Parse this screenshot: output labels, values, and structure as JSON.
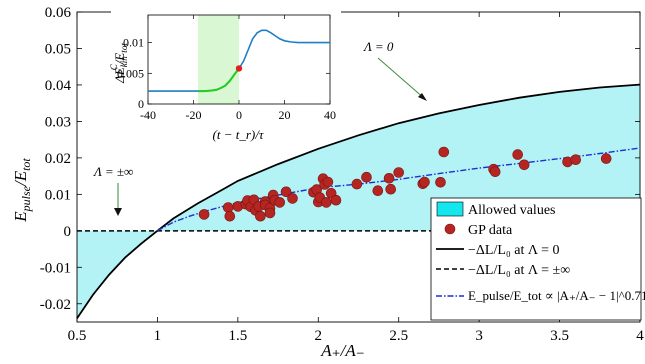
{
  "chart_data": [
    {
      "type": "scatter",
      "title": "",
      "xlabel": "A₊/A₋",
      "ylabel_main": "E",
      "ylabel_sub": "pulse",
      "ylabel_sep": "/E",
      "ylabel_sub2": "tot",
      "xlim": [
        0.5,
        4
      ],
      "ylim": [
        -0.025,
        0.06
      ],
      "xticks": [
        0.5,
        1,
        1.5,
        2,
        2.5,
        3,
        3.5,
        4
      ],
      "xtick_labels": [
        "0.5",
        "1",
        "1.5",
        "2",
        "2.5",
        "3",
        "3.5",
        "4"
      ],
      "yticks": [
        -0.02,
        -0.01,
        0,
        0.01,
        0.02,
        0.03,
        0.04,
        0.05,
        0.06
      ],
      "ytick_labels": [
        "-0.02",
        "-0.01",
        "0",
        "0.01",
        "0.02",
        "0.03",
        "0.04",
        "0.05",
        "0.06"
      ],
      "grid": false,
      "legend_placement": "bottom-right",
      "legend": [
        {
          "key": "allowed",
          "text": "Allowed values"
        },
        {
          "key": "gp",
          "text": "GP data"
        },
        {
          "key": "solid",
          "text": "−ΔL/L₀ at Λ = 0"
        },
        {
          "key": "dashed",
          "text": "−ΔL/L₀ at Λ = ±∞"
        },
        {
          "key": "fit",
          "text": "E_pulse/E_tot ∝ |A₊/A₋ − 1|^0.71"
        }
      ],
      "annotations": [
        {
          "text": "Λ = 0",
          "x": 3.03,
          "y": 0.0525
        },
        {
          "text": "Λ = ±∞",
          "x": 0.62,
          "y": 0.0135
        }
      ],
      "colors": {
        "fill": "#b3f2f5",
        "fill_legend": "#14e6ee",
        "gp": "#b52623",
        "gp_edge": "#7a1311",
        "boundary": "#000000",
        "fit": "#1f2fd2"
      },
      "series": [
        {
          "name": "−ΔL/L₀ at Λ = 0",
          "style": "solid",
          "points": [
            [
              0.5,
              -0.024
            ],
            [
              0.6,
              -0.0175
            ],
            [
              0.7,
              -0.012
            ],
            [
              0.8,
              -0.0073
            ],
            [
              0.9,
              -0.0035
            ],
            [
              1.0,
              0
            ],
            [
              1.1,
              0.0034
            ],
            [
              1.25,
              0.0075
            ],
            [
              1.4,
              0.0112
            ],
            [
              1.5,
              0.0137
            ],
            [
              1.75,
              0.0183
            ],
            [
              2.0,
              0.0225
            ],
            [
              2.25,
              0.0262
            ],
            [
              2.5,
              0.0295
            ],
            [
              2.75,
              0.0322
            ],
            [
              3.0,
              0.0345
            ],
            [
              3.25,
              0.0365
            ],
            [
              3.5,
              0.0381
            ],
            [
              3.75,
              0.0393
            ],
            [
              4.0,
              0.0401
            ]
          ]
        },
        {
          "name": "−ΔL/L₀ at Λ = ±∞",
          "style": "dashed",
          "points": [
            [
              0.5,
              0
            ],
            [
              4.0,
              0
            ]
          ]
        },
        {
          "name": "E_pulse/E_tot ∝ |A₊/A₋ − 1|^0.71",
          "style": "dashdot",
          "points": [
            [
              1.0,
              0
            ],
            [
              1.05,
              0.0012
            ],
            [
              1.1,
              0.0024
            ],
            [
              1.2,
              0.004
            ],
            [
              1.3,
              0.0054
            ],
            [
              1.5,
              0.0078
            ],
            [
              1.75,
              0.0098
            ],
            [
              2.0,
              0.0118
            ],
            [
              2.25,
              0.0128
            ],
            [
              2.5,
              0.0141
            ],
            [
              2.75,
              0.0157
            ],
            [
              3.0,
              0.0172
            ],
            [
              3.25,
              0.0185
            ],
            [
              3.5,
              0.0198
            ],
            [
              3.75,
              0.0212
            ],
            [
              4.0,
              0.0227
            ]
          ]
        },
        {
          "name": "GP data",
          "style": "markers",
          "points": [
            [
              1.29,
              0.0045
            ],
            [
              1.44,
              0.0064
            ],
            [
              1.45,
              0.004
            ],
            [
              1.5,
              0.0067
            ],
            [
              1.55,
              0.0073
            ],
            [
              1.56,
              0.0083
            ],
            [
              1.58,
              0.0066
            ],
            [
              1.6,
              0.0085
            ],
            [
              1.61,
              0.0056
            ],
            [
              1.63,
              0.0067
            ],
            [
              1.64,
              0.004
            ],
            [
              1.67,
              0.008
            ],
            [
              1.67,
              0.0071
            ],
            [
              1.7,
              0.0062
            ],
            [
              1.7,
              0.0049
            ],
            [
              1.72,
              0.0098
            ],
            [
              1.73,
              0.0084
            ],
            [
              1.76,
              0.0078
            ],
            [
              1.8,
              0.0107
            ],
            [
              1.84,
              0.0089
            ],
            [
              1.97,
              0.0106
            ],
            [
              1.99,
              0.0113
            ],
            [
              2.0,
              0.0079
            ],
            [
              2.01,
              0.0091
            ],
            [
              2.03,
              0.0143
            ],
            [
              2.04,
              0.0127
            ],
            [
              2.05,
              0.0078
            ],
            [
              2.06,
              0.0134
            ],
            [
              2.08,
              0.0103
            ],
            [
              2.11,
              0.0084
            ],
            [
              2.24,
              0.0128
            ],
            [
              2.3,
              0.0147
            ],
            [
              2.37,
              0.011
            ],
            [
              2.44,
              0.0144
            ],
            [
              2.45,
              0.0114
            ],
            [
              2.5,
              0.016
            ],
            [
              2.65,
              0.0129
            ],
            [
              2.66,
              0.0134
            ],
            [
              2.76,
              0.0133
            ],
            [
              2.78,
              0.0216
            ],
            [
              3.09,
              0.0169
            ],
            [
              3.1,
              0.0162
            ],
            [
              3.24,
              0.0209
            ],
            [
              3.28,
              0.0181
            ],
            [
              3.55,
              0.0189
            ],
            [
              3.6,
              0.0195
            ],
            [
              3.79,
              0.0198
            ]
          ]
        }
      ]
    },
    {
      "type": "line",
      "title": "",
      "xlabel": "(t − t_r)/τ",
      "ylabel_pre": "ΔE",
      "ylabel_sup": "C",
      "ylabel_sub": "kin",
      "ylabel_post": "/E",
      "ylabel_sub2": "tot",
      "xlim": [
        -40,
        40
      ],
      "ylim": [
        0,
        0.0145
      ],
      "xticks": [
        -40,
        -20,
        0,
        20,
        40
      ],
      "xtick_labels": [
        "-40",
        "-20",
        "0",
        "20",
        "40"
      ],
      "yticks": [
        0,
        0.005,
        0.01
      ],
      "ytick_labels": [
        "0",
        "0.005",
        "0.01"
      ],
      "grid": false,
      "shaded_region": {
        "x": [
          -18,
          0
        ],
        "color": "#d8f7d2"
      },
      "colors": {
        "line": "#1f7fc4",
        "highlight": "#22cc22",
        "marker": "#e01f1f"
      },
      "marker_point": [
        0,
        0.0058
      ],
      "series": [
        {
          "name": "",
          "points": [
            [
              -40,
              0.0021
            ],
            [
              -36,
              0.0021
            ],
            [
              -32,
              0.0021
            ],
            [
              -28,
              0.0021
            ],
            [
              -24,
              0.0021
            ],
            [
              -20,
              0.0021
            ],
            [
              -18,
              0.0021
            ],
            [
              -15,
              0.0021
            ],
            [
              -12,
              0.0022
            ],
            [
              -10,
              0.0023
            ],
            [
              -8,
              0.0026
            ],
            [
              -6,
              0.003
            ],
            [
              -4,
              0.0038
            ],
            [
              -2,
              0.0048
            ],
            [
              0,
              0.0058
            ],
            [
              2,
              0.007
            ],
            [
              4,
              0.0088
            ],
            [
              6,
              0.0106
            ],
            [
              8,
              0.0116
            ],
            [
              10,
              0.012
            ],
            [
              12,
              0.012
            ],
            [
              14,
              0.0116
            ],
            [
              16,
              0.0111
            ],
            [
              18,
              0.0106
            ],
            [
              20,
              0.0103
            ],
            [
              23,
              0.0101
            ],
            [
              26,
              0.01
            ],
            [
              30,
              0.01
            ],
            [
              35,
              0.01
            ],
            [
              40,
              0.01
            ]
          ]
        }
      ]
    }
  ]
}
